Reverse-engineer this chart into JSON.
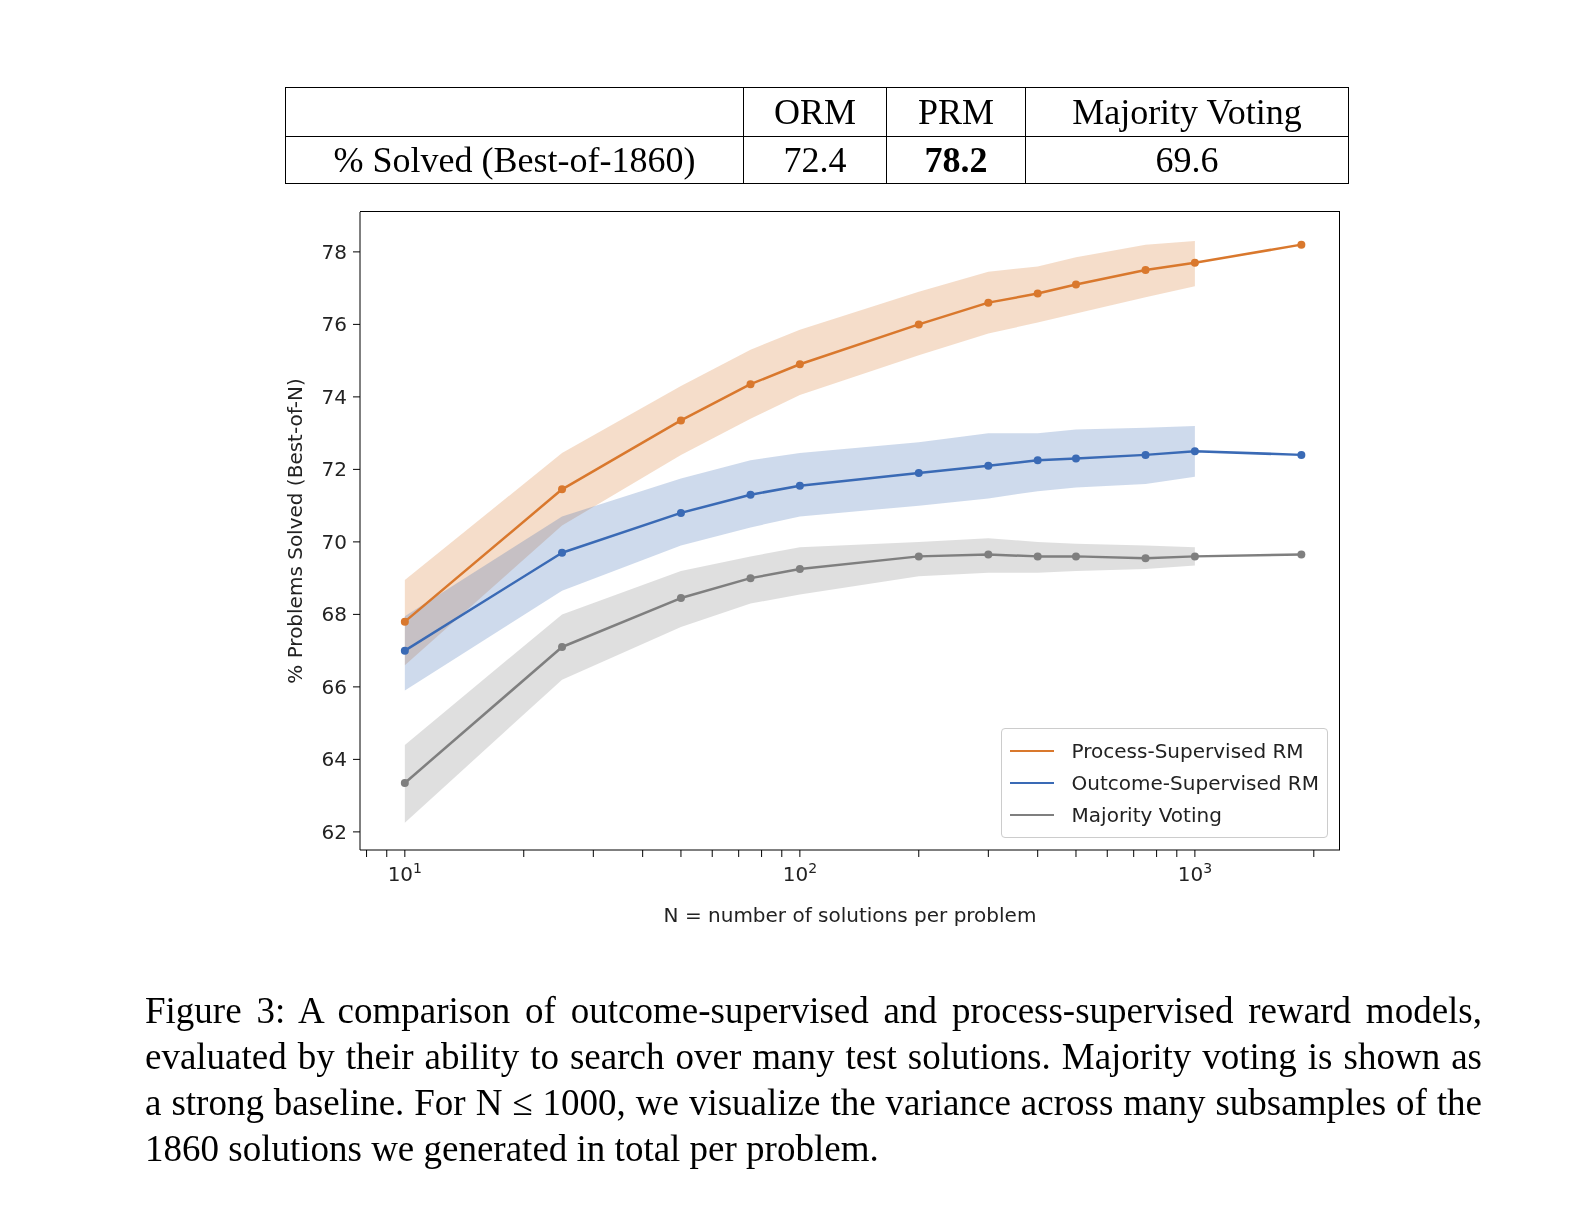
{
  "chart_data": {
    "type": "line",
    "xlabel": "N = number of solutions per problem",
    "ylabel": "% Problems Solved (Best-of-N)",
    "log": "x",
    "xlim": [
      7.7,
      2330
    ],
    "ylim": [
      61.5,
      79.1
    ],
    "xticks": [
      {
        "value": 8,
        "label": null
      },
      {
        "value": 9,
        "label": null
      },
      {
        "value": 10,
        "label": "10$^{1}$"
      },
      {
        "value": 20,
        "label": null
      },
      {
        "value": 30,
        "label": null
      },
      {
        "value": 40,
        "label": null
      },
      {
        "value": 50,
        "label": null
      },
      {
        "value": 60,
        "label": null
      },
      {
        "value": 70,
        "label": null
      },
      {
        "value": 80,
        "label": null
      },
      {
        "value": 90,
        "label": null
      },
      {
        "value": 100,
        "label": "10$^{2}$"
      },
      {
        "value": 200,
        "label": null
      },
      {
        "value": 300,
        "label": null
      },
      {
        "value": 400,
        "label": null
      },
      {
        "value": 500,
        "label": null
      },
      {
        "value": 600,
        "label": null
      },
      {
        "value": 700,
        "label": null
      },
      {
        "value": 800,
        "label": null
      },
      {
        "value": 900,
        "label": null
      },
      {
        "value": 1000,
        "label": "10$^{3}$"
      },
      {
        "value": 2000,
        "label": null
      }
    ],
    "yticks": [
      62,
      64,
      66,
      68,
      70,
      72,
      74,
      76,
      78
    ],
    "x": [
      10,
      25,
      50,
      75,
      100,
      200,
      300,
      400,
      500,
      750,
      1000,
      1860
    ],
    "series": [
      {
        "name": "Process-Supervised RM",
        "color": "#d9782d",
        "values": [
          67.8,
          71.45,
          73.35,
          74.35,
          74.9,
          76.0,
          76.6,
          76.85,
          77.1,
          77.5,
          77.7,
          78.2
        ],
        "lower": [
          66.6,
          70.45,
          72.4,
          73.4,
          74.05,
          75.15,
          75.75,
          76.05,
          76.3,
          76.75,
          77.05,
          null
        ],
        "upper": [
          68.95,
          72.45,
          74.3,
          75.3,
          75.85,
          76.9,
          77.45,
          77.6,
          77.85,
          78.2,
          78.3,
          null
        ]
      },
      {
        "name": "Outcome-Supervised RM",
        "color": "#3a6ab5",
        "values": [
          67.0,
          69.7,
          70.8,
          71.3,
          71.55,
          71.9,
          72.1,
          72.25,
          72.3,
          72.4,
          72.5,
          72.4
        ],
        "lower": [
          65.9,
          68.65,
          69.9,
          70.4,
          70.7,
          71.0,
          71.2,
          71.4,
          71.5,
          71.6,
          71.8,
          null
        ],
        "upper": [
          67.95,
          70.7,
          71.75,
          72.25,
          72.45,
          72.75,
          73.0,
          73.0,
          73.1,
          73.15,
          73.2,
          null
        ]
      },
      {
        "name": "Majority Voting",
        "color": "#7f7f7f",
        "values": [
          63.35,
          67.1,
          68.45,
          69.0,
          69.25,
          69.6,
          69.65,
          69.6,
          69.6,
          69.55,
          69.6,
          69.65
        ],
        "lower": [
          62.25,
          66.2,
          67.65,
          68.3,
          68.55,
          69.05,
          69.15,
          69.15,
          69.2,
          69.25,
          69.35,
          null
        ],
        "upper": [
          64.4,
          68.0,
          69.2,
          69.6,
          69.85,
          70.0,
          70.1,
          70.0,
          69.95,
          69.9,
          69.85,
          null
        ]
      }
    ],
    "marker": "circle",
    "line_style": "solid",
    "legend": "bottom right",
    "annotations": [
      "% Solved (Best-of-1860)",
      "ORM",
      "PRM",
      "Majority Voting",
      "72.4",
      "78.2",
      "69.6",
      "Figure 3: A comparison of outcome-supervised and process-supervised reward models, evaluated by their ability to search over many test solutions. Majority voting is shown as a strong baseline. For N ≤ 1000, we visualize the variance across many subsamples of the 1860 solutions we generated in total per problem."
    ]
  }
}
